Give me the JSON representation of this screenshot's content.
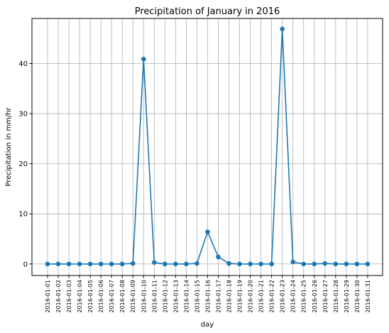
{
  "chart_data": {
    "type": "line",
    "title": "Precipitation of January in 2016",
    "xlabel": "day",
    "ylabel": "Precipitation in mm/hr",
    "grid": true,
    "ylim": [
      -2.3,
      49
    ],
    "yticks": [
      0,
      10,
      20,
      30,
      40
    ],
    "series_color": "#1f77b4",
    "categories": [
      "2016-01-01",
      "2016-01-02",
      "2016-01-03",
      "2016-01-04",
      "2016-01-05",
      "2016-01-06",
      "2016-01-07",
      "2016-01-08",
      "2016-01-09",
      "2016-01-10",
      "2016-01-11",
      "2016-01-12",
      "2016-01-13",
      "2016-01-14",
      "2016-01-15",
      "2016-01-16",
      "2016-01-17",
      "2016-01-18",
      "2016-01-19",
      "2016-01-20",
      "2016-01-21",
      "2016-01-22",
      "2016-01-23",
      "2016-01-24",
      "2016-01-25",
      "2016-01-26",
      "2016-01-27",
      "2016-01-28",
      "2016-01-29",
      "2016-01-30",
      "2016-01-31"
    ],
    "values": [
      0,
      0,
      0,
      0,
      0,
      0,
      0,
      0,
      0.1,
      40.9,
      0.3,
      0,
      0,
      0,
      0.1,
      6.4,
      1.4,
      0.1,
      0,
      0,
      0,
      0,
      46.9,
      0.4,
      0,
      0,
      0.1,
      0,
      0,
      0,
      0
    ]
  }
}
